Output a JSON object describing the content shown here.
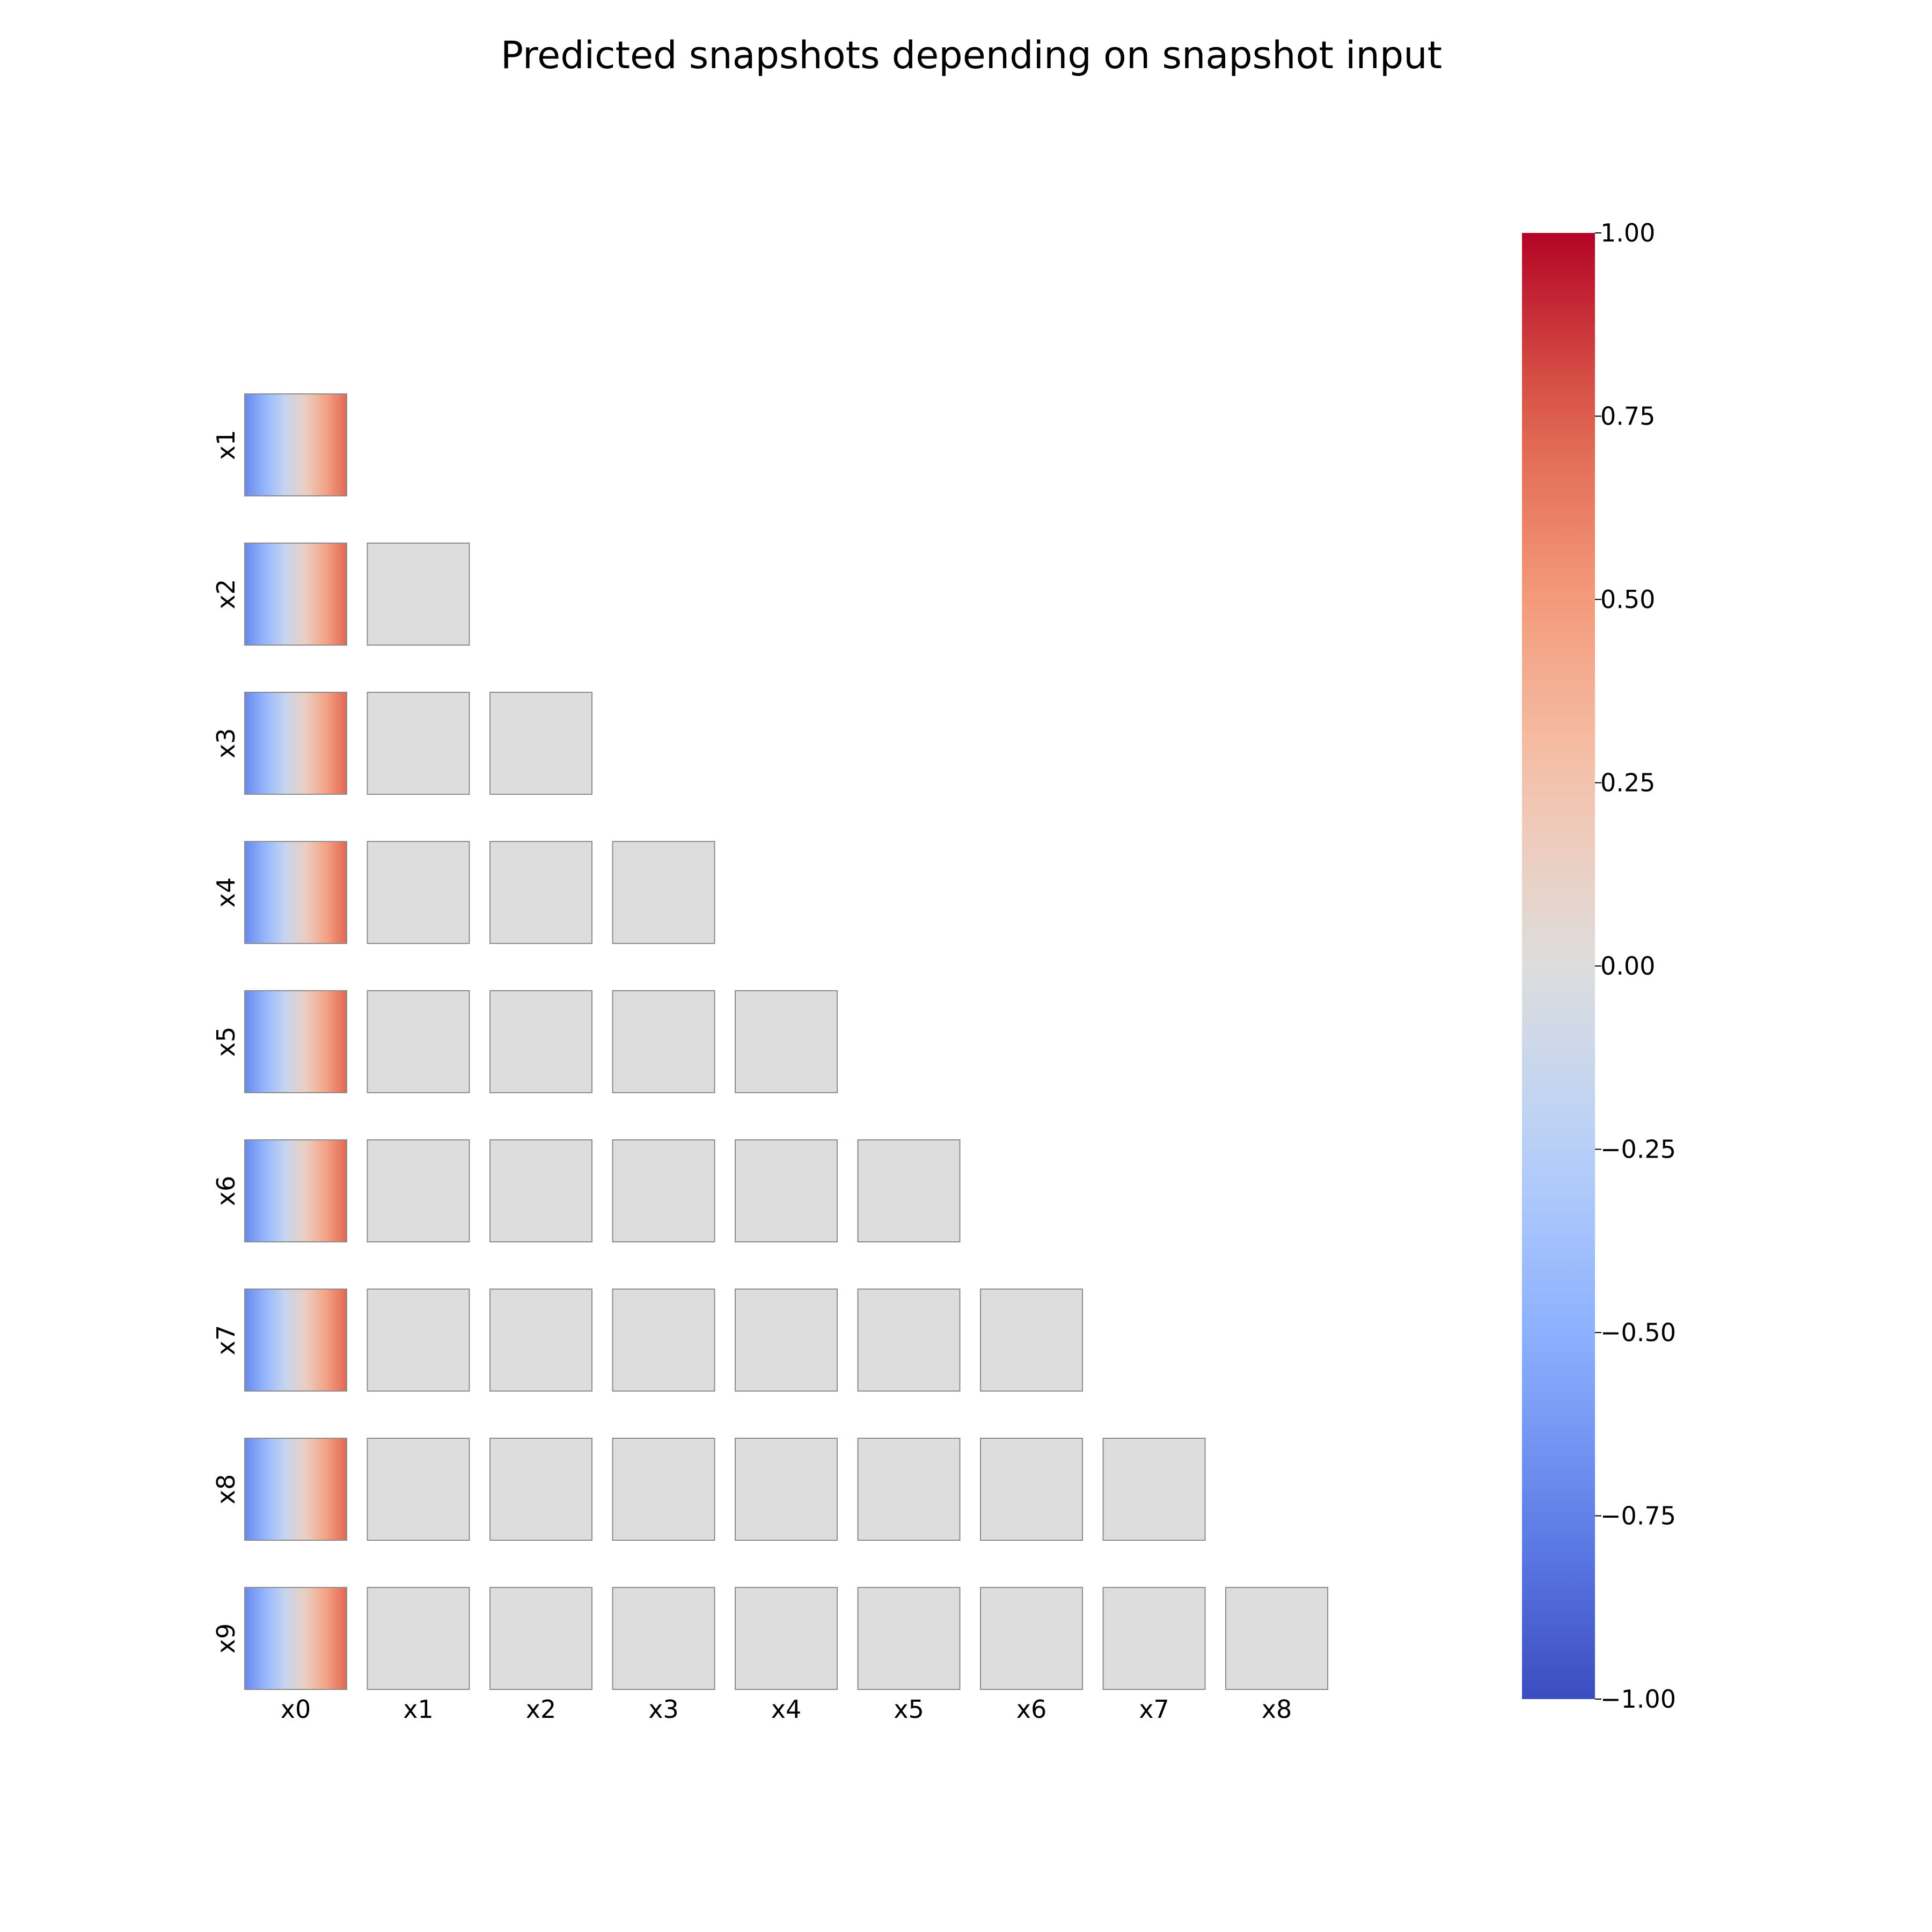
{
  "chart_data": {
    "type": "heatmap",
    "title": "Predicted snapshots depending on snapshot input",
    "layout": "lower-triangular grid of snapshot panels",
    "row_labels": [
      "x1",
      "x2",
      "x3",
      "x4",
      "x5",
      "x6",
      "x7",
      "x8",
      "x9"
    ],
    "col_labels": [
      "x0",
      "x1",
      "x2",
      "x3",
      "x4",
      "x5",
      "x6",
      "x7",
      "x8"
    ],
    "colormap": "coolwarm",
    "colorbar": {
      "range": [
        -1.0,
        1.0
      ],
      "ticks": [
        "1.00",
        "0.75",
        "0.50",
        "0.25",
        "0.00",
        "−0.25",
        "−0.50",
        "−0.75",
        "−1.00"
      ],
      "tick_values": [
        1.0,
        0.75,
        0.5,
        0.25,
        0.0,
        -0.25,
        -0.5,
        -0.75,
        -1.0
      ]
    },
    "x0_column_profile": {
      "description_values": "horizontal gradient from left to right, uniform vertically",
      "values": [
        -0.72,
        -0.45,
        -0.15,
        0.15,
        0.45,
        0.72
      ]
    },
    "other_panels_value": 0.0
  }
}
